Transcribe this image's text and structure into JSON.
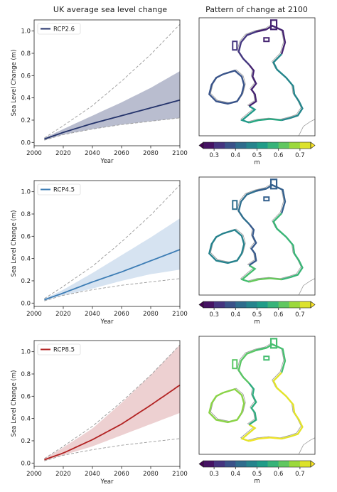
{
  "left_column_title": "UK average sea level change",
  "right_column_title": "Pattern of change at 2100",
  "chart_data": [
    {
      "type": "line",
      "panel": "RCP2.6",
      "xlabel": "Year",
      "ylabel": "Sea Level Change (m)",
      "xlim": [
        2000,
        2100
      ],
      "ylim": [
        -0.03,
        1.1
      ],
      "xticks": [
        2000,
        2020,
        2040,
        2060,
        2080,
        2100
      ],
      "yticks": [
        0.0,
        0.2,
        0.4,
        0.6,
        0.8,
        1.0
      ],
      "legend": "top-left",
      "color": "#24336b",
      "band_color": "#24336b",
      "series": [
        {
          "name": "RCP2.6",
          "x": [
            2007,
            2020,
            2040,
            2060,
            2080,
            2100
          ],
          "values": [
            0.03,
            0.09,
            0.17,
            0.24,
            0.31,
            0.38
          ]
        }
      ],
      "band": {
        "x": [
          2007,
          2020,
          2040,
          2060,
          2080,
          2100
        ],
        "lower": [
          0.02,
          0.07,
          0.12,
          0.16,
          0.19,
          0.22
        ],
        "upper": [
          0.04,
          0.12,
          0.24,
          0.36,
          0.49,
          0.64
        ]
      },
      "dashed_envelope": {
        "x": [
          2007,
          2020,
          2040,
          2060,
          2080,
          2100
        ],
        "lower": [
          0.02,
          0.07,
          0.12,
          0.16,
          0.19,
          0.22
        ],
        "upper": [
          0.04,
          0.15,
          0.33,
          0.55,
          0.79,
          1.06
        ]
      }
    },
    {
      "type": "line",
      "panel": "RCP4.5",
      "xlabel": "Year",
      "ylabel": "Sea Level Change (m)",
      "xlim": [
        2000,
        2100
      ],
      "ylim": [
        -0.03,
        1.1
      ],
      "xticks": [
        2000,
        2020,
        2040,
        2060,
        2080,
        2100
      ],
      "yticks": [
        0.0,
        0.2,
        0.4,
        0.6,
        0.8,
        1.0
      ],
      "legend": "top-left",
      "color": "#3d7db5",
      "band_color": "#7ea9d3",
      "series": [
        {
          "name": "RCP4.5",
          "x": [
            2007,
            2020,
            2040,
            2060,
            2080,
            2100
          ],
          "values": [
            0.03,
            0.09,
            0.19,
            0.28,
            0.38,
            0.48
          ]
        }
      ],
      "band": {
        "x": [
          2007,
          2020,
          2040,
          2060,
          2080,
          2100
        ],
        "lower": [
          0.02,
          0.07,
          0.13,
          0.2,
          0.26,
          0.3
        ],
        "upper": [
          0.04,
          0.12,
          0.27,
          0.43,
          0.59,
          0.76
        ]
      },
      "dashed_envelope": {
        "x": [
          2007,
          2020,
          2040,
          2060,
          2080,
          2100
        ],
        "lower": [
          0.02,
          0.07,
          0.12,
          0.16,
          0.19,
          0.22
        ],
        "upper": [
          0.04,
          0.15,
          0.33,
          0.55,
          0.79,
          1.06
        ]
      }
    },
    {
      "type": "line",
      "panel": "RCP8.5",
      "xlabel": "Year",
      "ylabel": "Sea Level Change (m)",
      "xlim": [
        2000,
        2100
      ],
      "ylim": [
        -0.03,
        1.1
      ],
      "xticks": [
        2000,
        2020,
        2040,
        2060,
        2080,
        2100
      ],
      "yticks": [
        0.0,
        0.2,
        0.4,
        0.6,
        0.8,
        1.0
      ],
      "legend": "top-left",
      "color": "#b22222",
      "band_color": "#c66e70",
      "series": [
        {
          "name": "RCP8.5",
          "x": [
            2007,
            2020,
            2040,
            2060,
            2080,
            2100
          ],
          "values": [
            0.03,
            0.09,
            0.21,
            0.35,
            0.52,
            0.7
          ]
        }
      ],
      "band": {
        "x": [
          2007,
          2020,
          2040,
          2060,
          2080,
          2100
        ],
        "lower": [
          0.02,
          0.07,
          0.15,
          0.25,
          0.35,
          0.45
        ],
        "upper": [
          0.04,
          0.14,
          0.31,
          0.54,
          0.79,
          1.06
        ]
      },
      "dashed_envelope": {
        "x": [
          2007,
          2020,
          2040,
          2060,
          2080,
          2100
        ],
        "lower": [
          0.02,
          0.07,
          0.12,
          0.16,
          0.19,
          0.22
        ],
        "upper": [
          0.04,
          0.15,
          0.33,
          0.55,
          0.79,
          1.06
        ]
      }
    }
  ],
  "maps": [
    {
      "panel": "RCP2.6",
      "colorbar": {
        "ticks": [
          "0.3",
          "0.4",
          "0.5",
          "0.6",
          "0.7"
        ],
        "label": "m",
        "range": [
          0.25,
          0.75
        ]
      },
      "coast_values": {
        "north": 0.3,
        "west": 0.33,
        "irish_sea": 0.3,
        "ireland": 0.38,
        "east": 0.48,
        "south": 0.52,
        "southeast": 0.55
      }
    },
    {
      "panel": "RCP4.5",
      "colorbar": {
        "ticks": [
          "0.3",
          "0.4",
          "0.5",
          "0.6",
          "0.7"
        ],
        "label": "m",
        "range": [
          0.25,
          0.75
        ]
      },
      "coast_values": {
        "north": 0.4,
        "west": 0.43,
        "irish_sea": 0.39,
        "ireland": 0.47,
        "east": 0.58,
        "south": 0.6,
        "southeast": 0.63
      }
    },
    {
      "panel": "RCP8.5",
      "colorbar": {
        "ticks": [
          "0.3",
          "0.4",
          "0.5",
          "0.6",
          "0.7"
        ],
        "label": "m",
        "range": [
          0.25,
          0.75
        ]
      },
      "coast_values": {
        "north": 0.6,
        "west": 0.62,
        "irish_sea": 0.56,
        "ireland": 0.66,
        "east": 0.73,
        "south": 0.73,
        "southeast": 0.74
      }
    }
  ],
  "colors": {
    "viridis": [
      "#440154",
      "#46327e",
      "#365c8d",
      "#277f8e",
      "#1fa187",
      "#4ac16d",
      "#a0da39",
      "#fde725"
    ],
    "dashed": "#999999",
    "coast_grey": "#9a9a9a"
  }
}
